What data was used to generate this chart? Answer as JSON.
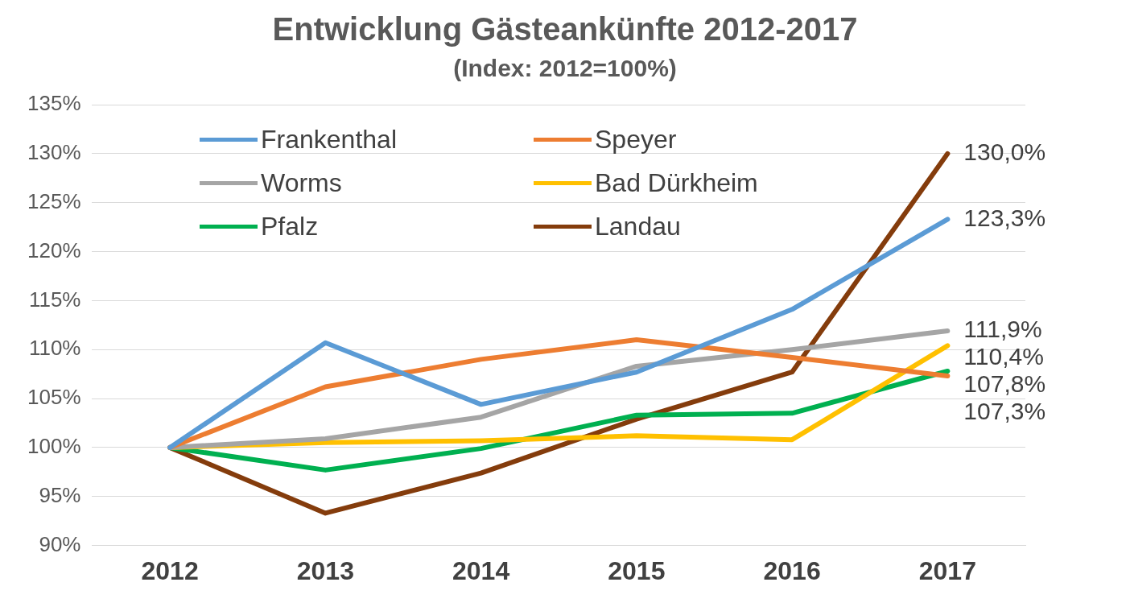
{
  "chart_data": {
    "type": "line",
    "title": "Entwicklung Gästeankünfte 2012-2017",
    "subtitle": "(Index: 2012=100%)",
    "categories": [
      "2012",
      "2013",
      "2014",
      "2015",
      "2016",
      "2017"
    ],
    "series": [
      {
        "name": "Frankenthal",
        "color": "#5b9bd5",
        "values": [
          100,
          110.7,
          104.4,
          107.7,
          114.1,
          123.3
        ],
        "value_labels": [
          null,
          null,
          null,
          null,
          null,
          "123,3%"
        ]
      },
      {
        "name": "Speyer",
        "color": "#ed7d31",
        "values": [
          100,
          106.2,
          109.0,
          111.0,
          109.2,
          107.3
        ],
        "value_labels": [
          null,
          null,
          null,
          null,
          null,
          "107,3%"
        ]
      },
      {
        "name": "Worms",
        "color": "#a5a5a5",
        "values": [
          100,
          100.9,
          103.1,
          108.3,
          110.0,
          111.9
        ],
        "value_labels": [
          null,
          null,
          null,
          null,
          null,
          "111,9%"
        ]
      },
      {
        "name": "Bad Dürkheim",
        "color": "#ffc000",
        "values": [
          100,
          100.5,
          100.7,
          101.2,
          100.8,
          110.4
        ],
        "value_labels": [
          null,
          null,
          null,
          null,
          null,
          "110,4%"
        ]
      },
      {
        "name": "Pfalz",
        "color": "#00b050",
        "values": [
          100,
          97.7,
          99.9,
          103.3,
          103.5,
          107.8
        ],
        "value_labels": [
          null,
          null,
          null,
          null,
          null,
          "107,8%"
        ]
      },
      {
        "name": "Landau",
        "color": "#843c0c",
        "values": [
          100,
          93.3,
          97.4,
          102.9,
          107.7,
          130.0
        ],
        "value_labels": [
          null,
          null,
          null,
          null,
          null,
          "130,0%"
        ]
      }
    ],
    "ylim": [
      90,
      135
    ],
    "yticks": [
      {
        "value": 90,
        "label": "90%"
      },
      {
        "value": 95,
        "label": "95%"
      },
      {
        "value": 100,
        "label": "100%"
      },
      {
        "value": 105,
        "label": "105%"
      },
      {
        "value": 110,
        "label": "110%"
      },
      {
        "value": 115,
        "label": "115%"
      },
      {
        "value": 120,
        "label": "120%"
      },
      {
        "value": 125,
        "label": "125%"
      },
      {
        "value": 130,
        "label": "130%"
      },
      {
        "value": 135,
        "label": "135%"
      }
    ],
    "grid": "y",
    "legend": "top left",
    "marker": "none",
    "line_style": "solid"
  }
}
